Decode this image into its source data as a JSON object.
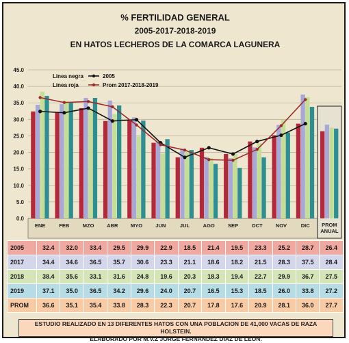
{
  "header": {
    "line1": "% FERTILIDAD GENERAL",
    "line2": "2005-2017-2018-2019",
    "line3": "EN HATOS LECHEROS DE LA COMARCA LAGUNERA"
  },
  "chart_data": {
    "type": "bar",
    "categories": [
      "ENE",
      "FEB",
      "MZO",
      "ABR",
      "MYO",
      "JUN",
      "JUL",
      "AGO",
      "SEP",
      "OCT",
      "NOV",
      "DIC",
      "PROM ANUAL"
    ],
    "series": [
      {
        "name": "2005",
        "color": "#b5283a",
        "values": [
          32.4,
          32.0,
          33.4,
          29.5,
          29.9,
          22.9,
          18.5,
          21.4,
          19.5,
          23.3,
          25.2,
          28.7,
          26.4
        ]
      },
      {
        "name": "2017",
        "color": "#a8a8d8",
        "values": [
          34.4,
          34.6,
          36.5,
          35.7,
          30.6,
          23.3,
          21.1,
          18.6,
          18.2,
          21.5,
          28.3,
          37.5,
          28.4
        ]
      },
      {
        "name": "2018",
        "color": "#c6dd96",
        "values": [
          38.4,
          35.6,
          33.1,
          31.6,
          24.8,
          19.6,
          20.3,
          18.3,
          19.4,
          22.7,
          29.9,
          36.7,
          27.5
        ]
      },
      {
        "name": "2019",
        "color": "#2d8f92",
        "values": [
          37.1,
          35.0,
          36.5,
          34.2,
          29.6,
          24.0,
          20.7,
          16.5,
          15.3,
          18.5,
          26.0,
          33.8,
          27.2
        ]
      }
    ],
    "lines": [
      {
        "name": "2005",
        "color": "#111111",
        "values": [
          32.4,
          32.0,
          33.4,
          29.5,
          29.9,
          22.9,
          18.5,
          21.4,
          19.5,
          23.3,
          25.2,
          28.7
        ]
      },
      {
        "name": "Prom 2017-2018-2019",
        "color": "#9b2c2c",
        "values": [
          36.6,
          35.1,
          35.4,
          33.8,
          28.3,
          22.3,
          20.7,
          17.8,
          17.6,
          20.9,
          28.1,
          36.0
        ]
      }
    ],
    "legend": [
      {
        "label": "Linea negra",
        "name": "2005",
        "color": "#111111"
      },
      {
        "label": "Linea roja",
        "name": "Prom 2017-2018-2019",
        "color": "#9b2c2c"
      }
    ],
    "yticks": [
      "0.0",
      "5.0",
      "10.0",
      "15.0",
      "20.0",
      "25.0",
      "30.0",
      "35.0",
      "40.0",
      "45.0"
    ],
    "ylim": [
      0,
      45
    ],
    "grid": true
  },
  "table": {
    "headers_row_labels": [
      "2005",
      "2017",
      "2018",
      "2019",
      "PROM"
    ],
    "rows": [
      {
        "label": "2005",
        "values": [
          "32.4",
          "32.0",
          "33.4",
          "29.5",
          "29.9",
          "22.9",
          "18.5",
          "21.4",
          "19.5",
          "23.3",
          "25.2",
          "28.7",
          "26.4"
        ]
      },
      {
        "label": "2017",
        "values": [
          "34.4",
          "34.6",
          "36.5",
          "35.7",
          "30.6",
          "23.3",
          "21.1",
          "18.6",
          "18.2",
          "21.5",
          "28.3",
          "37.5",
          "28.4"
        ]
      },
      {
        "label": "2018",
        "values": [
          "38.4",
          "35.6",
          "33.1",
          "31.6",
          "24.8",
          "19.6",
          "20.3",
          "18.3",
          "19.4",
          "22.7",
          "29.9",
          "36.7",
          "27.5"
        ]
      },
      {
        "label": "2019",
        "values": [
          "37.1",
          "35.0",
          "36.5",
          "34.2",
          "29.6",
          "24.0",
          "20.7",
          "16.5",
          "15.3",
          "18.5",
          "26.0",
          "33.8",
          "27.2"
        ]
      },
      {
        "label": "PROM",
        "values": [
          "36.6",
          "35.1",
          "35.4",
          "33.8",
          "28.3",
          "22.3",
          "20.7",
          "17.8",
          "17.6",
          "20.9",
          "28.1",
          "36.0",
          "27.7"
        ]
      }
    ]
  },
  "footer": {
    "line1": "ESTUDIO REALIZADO EN 13 DIFERENTES HATOS CON UNA POBLACION DE 41,000 VACAS DE RAZA HOLSTEIN.",
    "line2": "ELABORADO POR M.V.Z JORGE FERNANDEZ DIAZ DE LEON."
  }
}
